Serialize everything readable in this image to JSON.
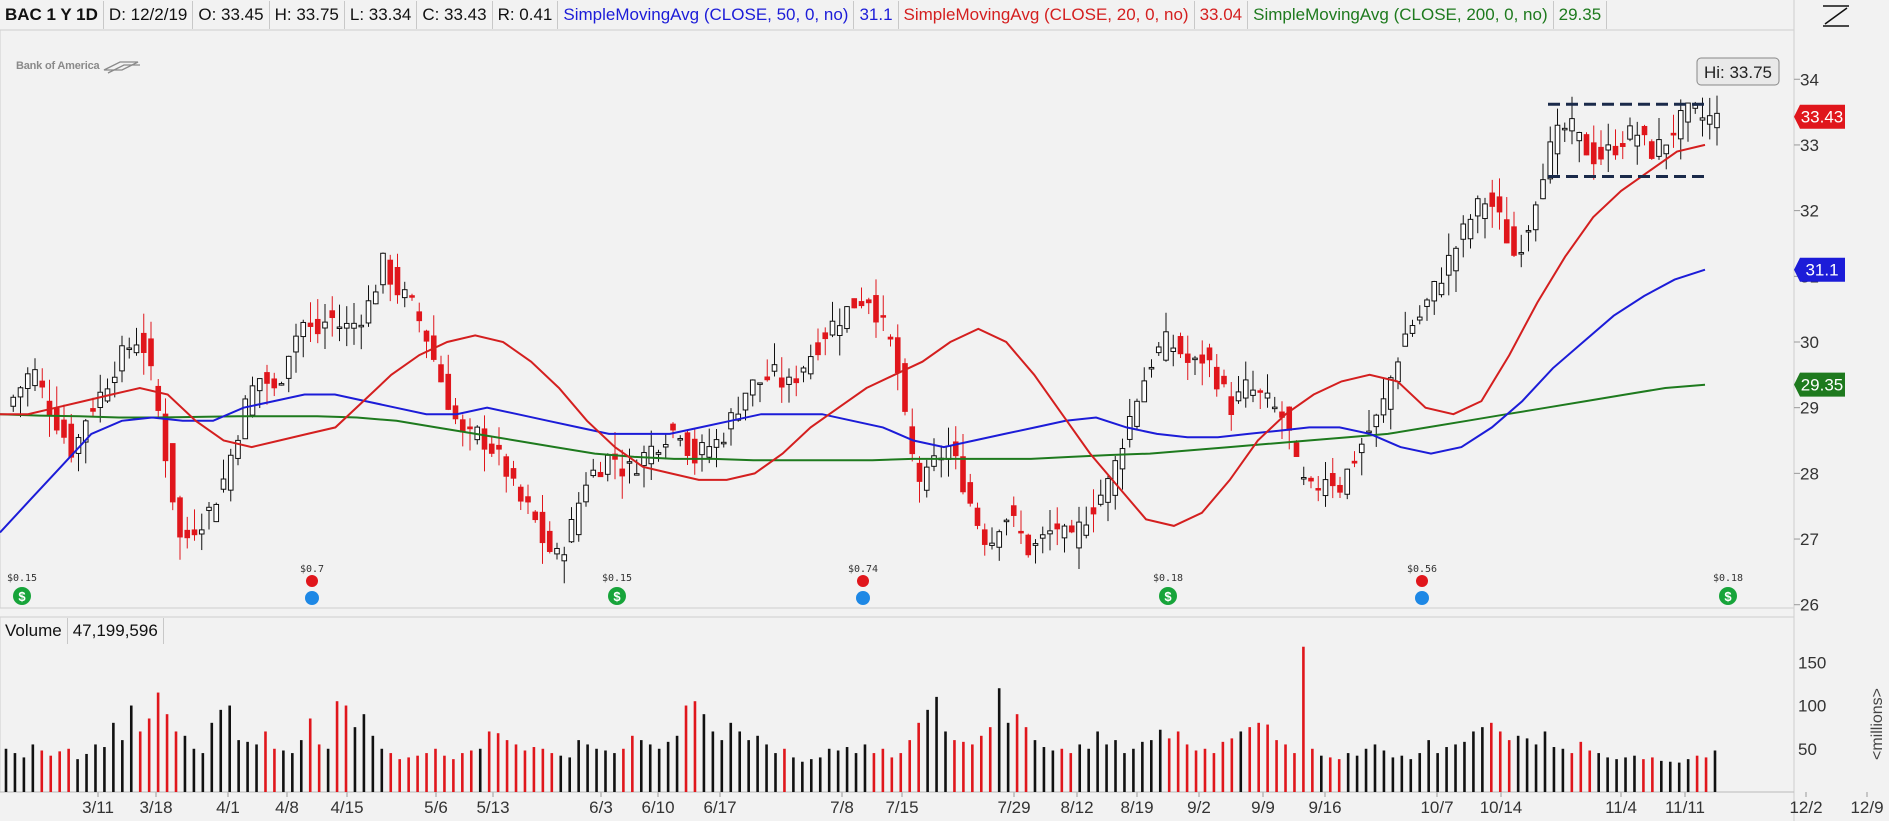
{
  "header": {
    "symbol": "BAC 1 Y 1D",
    "date": "D: 12/2/19",
    "open": "O: 33.45",
    "high": "H: 33.75",
    "low": "L: 33.34",
    "close": "C: 33.43",
    "range": "R: 0.41",
    "sma50_label": "SimpleMovingAvg (CLOSE, 50, 0, no)",
    "sma50_value": "31.1",
    "sma20_label": "SimpleMovingAvg (CLOSE, 20, 0, no)",
    "sma20_value": "33.04",
    "sma200_label": "SimpleMovingAvg (CLOSE, 200, 0, no)",
    "sma200_value": "29.35"
  },
  "logo_text": "Bank of America",
  "volume_header": {
    "label": "Volume",
    "value": "47,199,596"
  },
  "colors": {
    "up": "#ffffff",
    "down": "#e0161c",
    "sma50": "#1c1cd8",
    "sma20": "#d41f1f",
    "sma200": "#1e7a1e",
    "background": "#f2f2f2",
    "dividend": "#17a43a",
    "earnings": "#1e88e5"
  },
  "chart_data": {
    "type": "candlestick",
    "price_axis": {
      "ticks": [
        26,
        27,
        28,
        29,
        30,
        31,
        32,
        33,
        34
      ],
      "ylim": [
        25.95,
        34.75
      ]
    },
    "volume_axis": {
      "ticks": [
        50,
        100,
        150
      ],
      "ylim": [
        0,
        170
      ],
      "unit_label": "<millions>"
    },
    "x_ticks": [
      "3/11",
      "3/18",
      "4/1",
      "4/8",
      "4/15",
      "5/6",
      "5/13",
      "6/3",
      "6/10",
      "6/17",
      "7/8",
      "7/15",
      "7/29",
      "8/12",
      "8/19",
      "9/2",
      "9/9",
      "9/16",
      "10/7",
      "10/14",
      "11/4",
      "11/11",
      "12/2",
      "12/9"
    ],
    "high_label": "Hi: 33.75",
    "last_price": "33.43",
    "sma_badges": [
      {
        "name": "sma50",
        "value": "31.1"
      },
      {
        "name": "sma200",
        "value": "29.35"
      }
    ],
    "price_path": [
      29.0,
      29.3,
      29.6,
      29.1,
      28.7,
      28.3,
      28.9,
      29.2,
      29.6,
      29.9,
      30.1,
      29.3,
      28.1,
      26.9,
      27.2,
      27.4,
      27.8,
      28.5,
      29.2,
      29.5,
      29.2,
      29.9,
      30.3,
      30.1,
      30.4,
      30.2,
      30.3,
      30.6,
      31.2,
      30.8,
      30.6,
      30.2,
      29.6,
      29.0,
      28.5,
      28.6,
      28.4,
      28.1,
      27.6,
      27.4,
      26.9,
      26.7,
      27.2,
      27.9,
      28.1,
      28.3,
      28.0,
      28.2,
      28.4,
      28.6,
      28.7,
      28.2,
      28.4,
      28.5,
      28.9,
      29.3,
      29.4,
      29.5,
      29.3,
      29.6,
      29.9,
      30.2,
      30.4,
      30.6,
      30.7,
      30.3,
      29.8,
      28.4,
      27.8,
      28.2,
      28.4,
      27.9,
      27.3,
      26.9,
      27.4,
      27.2,
      26.8,
      27.0,
      27.2,
      26.9,
      27.3,
      27.6,
      27.9,
      28.6,
      29.2,
      29.7,
      30.0,
      29.9,
      29.6,
      29.8,
      29.4,
      29.0,
      29.3,
      29.2,
      29.0,
      28.8,
      27.9,
      27.7,
      28.0,
      27.8,
      28.2,
      28.6,
      28.9,
      29.6,
      30.2,
      30.4,
      30.8,
      31.2,
      31.6,
      32.0,
      32.2,
      31.8,
      31.3,
      31.8,
      32.6,
      33.1,
      33.3,
      33.0,
      32.8,
      32.9,
      33.1,
      33.2,
      32.9,
      33.0,
      33.3,
      33.5,
      33.4,
      33.4
    ],
    "sma20_path": [
      28.9,
      28.9,
      29.0,
      29.1,
      29.2,
      29.3,
      29.2,
      28.8,
      28.5,
      28.4,
      28.5,
      28.6,
      28.7,
      29.1,
      29.5,
      29.8,
      30.0,
      30.1,
      30.0,
      29.7,
      29.3,
      28.8,
      28.4,
      28.1,
      28.0,
      27.9,
      27.9,
      28.0,
      28.3,
      28.7,
      29.0,
      29.3,
      29.5,
      29.7,
      30.0,
      30.2,
      30.0,
      29.5,
      28.9,
      28.3,
      27.8,
      27.3,
      27.2,
      27.4,
      27.9,
      28.5,
      28.9,
      29.2,
      29.4,
      29.5,
      29.4,
      29.0,
      28.9,
      29.1,
      29.8,
      30.6,
      31.3,
      31.9,
      32.3,
      32.6,
      32.9,
      33.0
    ],
    "sma50_path": [
      27.1,
      27.6,
      28.1,
      28.6,
      28.8,
      28.85,
      28.8,
      28.8,
      29.0,
      29.1,
      29.2,
      29.2,
      29.1,
      29.0,
      28.9,
      28.9,
      29.0,
      28.9,
      28.8,
      28.7,
      28.6,
      28.6,
      28.6,
      28.7,
      28.8,
      28.9,
      28.9,
      28.9,
      28.8,
      28.7,
      28.5,
      28.4,
      28.5,
      28.6,
      28.7,
      28.8,
      28.85,
      28.7,
      28.6,
      28.55,
      28.55,
      28.6,
      28.65,
      28.7,
      28.7,
      28.6,
      28.4,
      28.3,
      28.4,
      28.7,
      29.1,
      29.6,
      30.0,
      30.4,
      30.7,
      30.95,
      31.1
    ],
    "sma200_path": [
      28.9,
      28.88,
      28.87,
      28.85,
      28.85,
      28.86,
      28.87,
      28.87,
      28.87,
      28.85,
      28.8,
      28.7,
      28.6,
      28.5,
      28.4,
      28.3,
      28.25,
      28.22,
      28.22,
      28.2,
      28.2,
      28.2,
      28.2,
      28.22,
      28.22,
      28.22,
      28.22,
      28.25,
      28.28,
      28.3,
      28.35,
      28.4,
      28.45,
      28.5,
      28.55,
      28.6,
      28.7,
      28.8,
      28.9,
      29.0,
      29.1,
      29.2,
      29.3,
      29.35
    ],
    "volume_path": [
      50,
      45,
      40,
      55,
      48,
      42,
      47,
      50,
      38,
      44,
      55,
      52,
      80,
      60,
      100,
      70,
      85,
      115,
      90,
      70,
      65,
      50,
      45,
      80,
      95,
      100,
      60,
      58,
      55,
      70,
      50,
      48,
      45,
      60,
      85,
      55,
      50,
      105,
      100,
      75,
      90,
      65,
      50,
      45,
      38,
      40,
      42,
      45,
      50,
      42,
      38,
      45,
      48,
      50,
      70,
      68,
      60,
      55,
      48,
      52,
      50,
      45,
      42,
      40,
      60,
      55,
      50,
      48,
      45,
      50,
      65,
      60,
      55,
      50,
      58,
      65,
      100,
      105,
      90,
      70,
      60,
      80,
      70,
      60,
      65,
      55,
      45,
      50,
      40,
      35,
      38,
      40,
      50,
      48,
      52,
      45,
      55,
      45,
      50,
      40,
      45,
      60,
      80,
      95,
      110,
      70,
      60,
      58,
      55,
      65,
      75,
      120,
      80,
      90,
      75,
      60,
      52,
      48,
      50,
      45,
      55,
      50,
      70,
      55,
      60,
      45,
      50,
      58,
      60,
      72,
      62,
      70,
      55,
      48,
      50,
      45,
      58,
      62,
      70,
      75,
      80,
      78,
      60,
      55,
      45,
      168,
      50,
      42,
      40,
      38,
      45,
      42,
      50,
      55,
      48,
      40,
      42,
      38,
      45,
      60,
      45,
      52,
      55,
      58,
      70,
      75,
      80,
      70,
      60,
      65,
      62,
      55,
      70,
      52,
      50,
      45,
      58,
      48,
      45,
      40,
      38,
      40,
      42,
      38,
      40,
      36,
      35,
      34,
      38,
      42,
      40,
      48
    ],
    "events": [
      {
        "type": "dividend",
        "label": "$0.15"
      },
      {
        "type": "earnings",
        "label": "$0.7"
      },
      {
        "type": "dividend",
        "label": "$0.15"
      },
      {
        "type": "earnings",
        "label": "$0.74"
      },
      {
        "type": "dividend",
        "label": "$0.18"
      },
      {
        "type": "earnings",
        "label": "$0.56"
      },
      {
        "type": "dividend",
        "label": "$0.18"
      }
    ]
  }
}
